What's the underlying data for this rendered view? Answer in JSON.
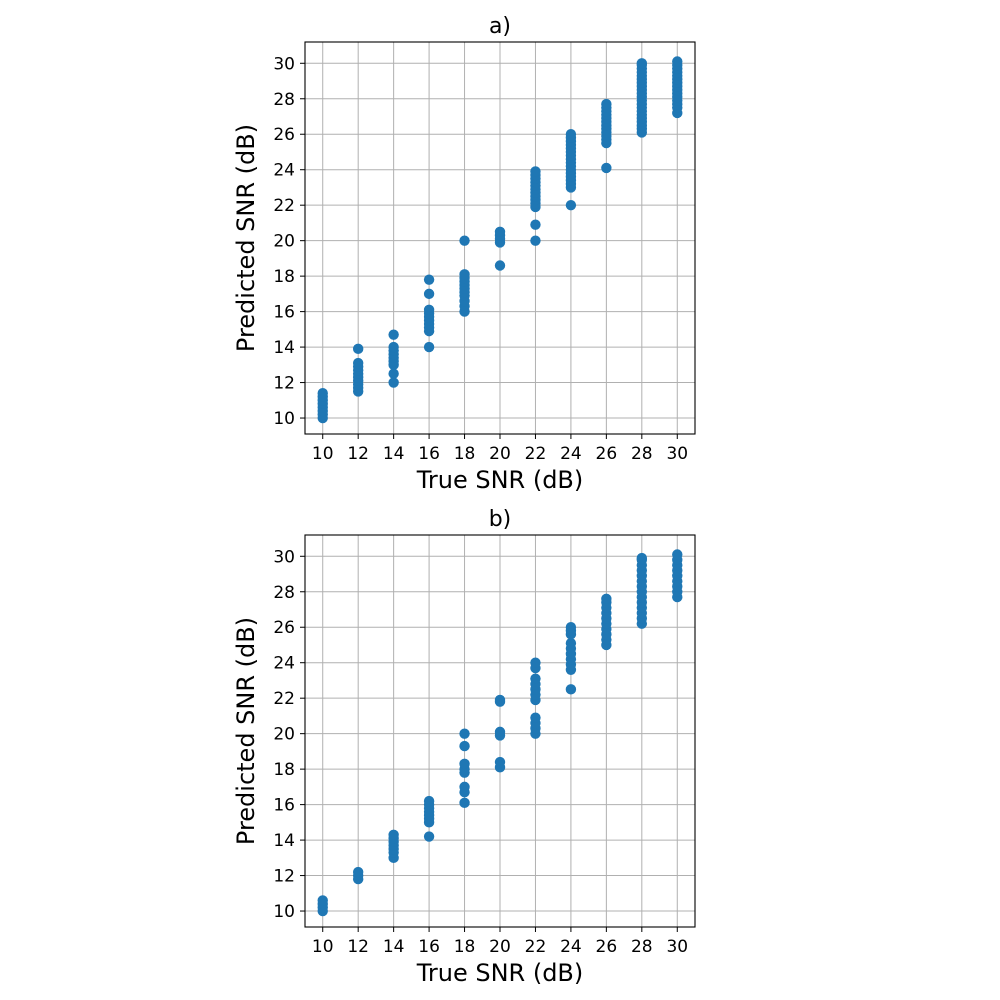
{
  "colors": {
    "marker": "#1f77b4",
    "grid": "#b0b0b0",
    "axis": "#000000"
  },
  "chart_data": [
    {
      "type": "scatter",
      "title": "a)",
      "xlabel": "True SNR (dB)",
      "ylabel": "Predicted SNR (dB)",
      "xlim": [
        9.0,
        31.0
      ],
      "ylim": [
        9.1,
        31.2
      ],
      "xticks": [
        10,
        12,
        14,
        16,
        18,
        20,
        22,
        24,
        26,
        28,
        30
      ],
      "yticks": [
        10,
        12,
        14,
        16,
        18,
        20,
        22,
        24,
        26,
        28,
        30
      ],
      "grid": true,
      "groups": [
        {
          "x": 10,
          "y": [
            10.0,
            10.2,
            10.4,
            10.6,
            10.8,
            11.0,
            11.2,
            11.4
          ]
        },
        {
          "x": 12,
          "y": [
            11.5,
            11.7,
            11.9,
            12.1,
            12.3,
            12.5,
            12.7,
            12.9,
            13.1,
            13.9
          ]
        },
        {
          "x": 14,
          "y": [
            12.0,
            12.5,
            13.0,
            13.2,
            13.4,
            13.6,
            13.8,
            14.0,
            14.7
          ]
        },
        {
          "x": 16,
          "y": [
            14.0,
            14.9,
            15.1,
            15.3,
            15.5,
            15.7,
            15.9,
            16.1,
            17.0,
            17.8
          ]
        },
        {
          "x": 18,
          "y": [
            16.0,
            16.3,
            16.6,
            16.9,
            17.1,
            17.3,
            17.5,
            17.7,
            17.9,
            18.1,
            20.0
          ]
        },
        {
          "x": 20,
          "y": [
            18.6,
            19.9,
            20.1,
            20.3,
            20.5
          ]
        },
        {
          "x": 22,
          "y": [
            20.0,
            20.9,
            21.9,
            22.1,
            22.3,
            22.5,
            22.7,
            22.9,
            23.1,
            23.3,
            23.5,
            23.7,
            23.9
          ]
        },
        {
          "x": 24,
          "y": [
            22.0,
            23.0,
            23.2,
            23.4,
            23.6,
            23.8,
            24.0,
            24.2,
            24.4,
            24.6,
            24.8,
            25.0,
            25.2,
            25.4,
            25.6,
            25.8,
            26.0
          ]
        },
        {
          "x": 26,
          "y": [
            24.1,
            25.5,
            25.7,
            25.9,
            26.1,
            26.3,
            26.5,
            26.7,
            26.9,
            27.1,
            27.3,
            27.5,
            27.7
          ]
        },
        {
          "x": 28,
          "y": [
            26.1,
            26.3,
            26.5,
            26.7,
            26.9,
            27.1,
            27.3,
            27.5,
            27.7,
            27.9,
            28.1,
            28.3,
            28.5,
            28.7,
            28.9,
            29.1,
            29.3,
            29.5,
            29.7,
            29.9,
            30.0
          ]
        },
        {
          "x": 30,
          "y": [
            27.2,
            27.5,
            27.7,
            27.9,
            28.1,
            28.3,
            28.5,
            28.7,
            28.9,
            29.1,
            29.3,
            29.5,
            29.7,
            29.9,
            30.1
          ]
        }
      ]
    },
    {
      "type": "scatter",
      "title": "b)",
      "xlabel": "True SNR (dB)",
      "ylabel": "Predicted SNR (dB)",
      "xlim": [
        9.0,
        31.0
      ],
      "ylim": [
        9.1,
        31.2
      ],
      "xticks": [
        10,
        12,
        14,
        16,
        18,
        20,
        22,
        24,
        26,
        28,
        30
      ],
      "yticks": [
        10,
        12,
        14,
        16,
        18,
        20,
        22,
        24,
        26,
        28,
        30
      ],
      "grid": true,
      "groups": [
        {
          "x": 10,
          "y": [
            10.0,
            10.2,
            10.4,
            10.6
          ]
        },
        {
          "x": 12,
          "y": [
            11.8,
            12.0,
            12.2
          ]
        },
        {
          "x": 14,
          "y": [
            13.0,
            13.3,
            13.5,
            13.7,
            13.9,
            14.1,
            14.3
          ]
        },
        {
          "x": 16,
          "y": [
            14.2,
            15.0,
            15.2,
            15.4,
            15.6,
            15.8,
            16.0,
            16.2
          ]
        },
        {
          "x": 18,
          "y": [
            16.1,
            16.7,
            17.0,
            17.8,
            18.0,
            18.3,
            19.3,
            20.0
          ]
        },
        {
          "x": 20,
          "y": [
            18.1,
            18.4,
            19.9,
            20.1,
            21.8,
            21.9
          ]
        },
        {
          "x": 22,
          "y": [
            20.0,
            20.3,
            20.6,
            20.9,
            21.9,
            22.2,
            22.5,
            22.8,
            23.1,
            23.7,
            24.0
          ]
        },
        {
          "x": 24,
          "y": [
            22.5,
            23.6,
            23.9,
            24.2,
            24.5,
            24.8,
            25.1,
            25.6,
            25.8,
            26.0
          ]
        },
        {
          "x": 26,
          "y": [
            25.0,
            25.3,
            25.6,
            25.9,
            26.2,
            26.5,
            26.8,
            27.1,
            27.4,
            27.6
          ]
        },
        {
          "x": 28,
          "y": [
            26.2,
            26.5,
            26.8,
            27.1,
            27.4,
            27.7,
            28.0,
            28.3,
            28.6,
            28.9,
            29.2,
            29.5,
            29.8,
            29.9
          ]
        },
        {
          "x": 30,
          "y": [
            27.7,
            28.0,
            28.3,
            28.6,
            28.9,
            29.2,
            29.5,
            29.8,
            30.1
          ]
        }
      ]
    }
  ]
}
